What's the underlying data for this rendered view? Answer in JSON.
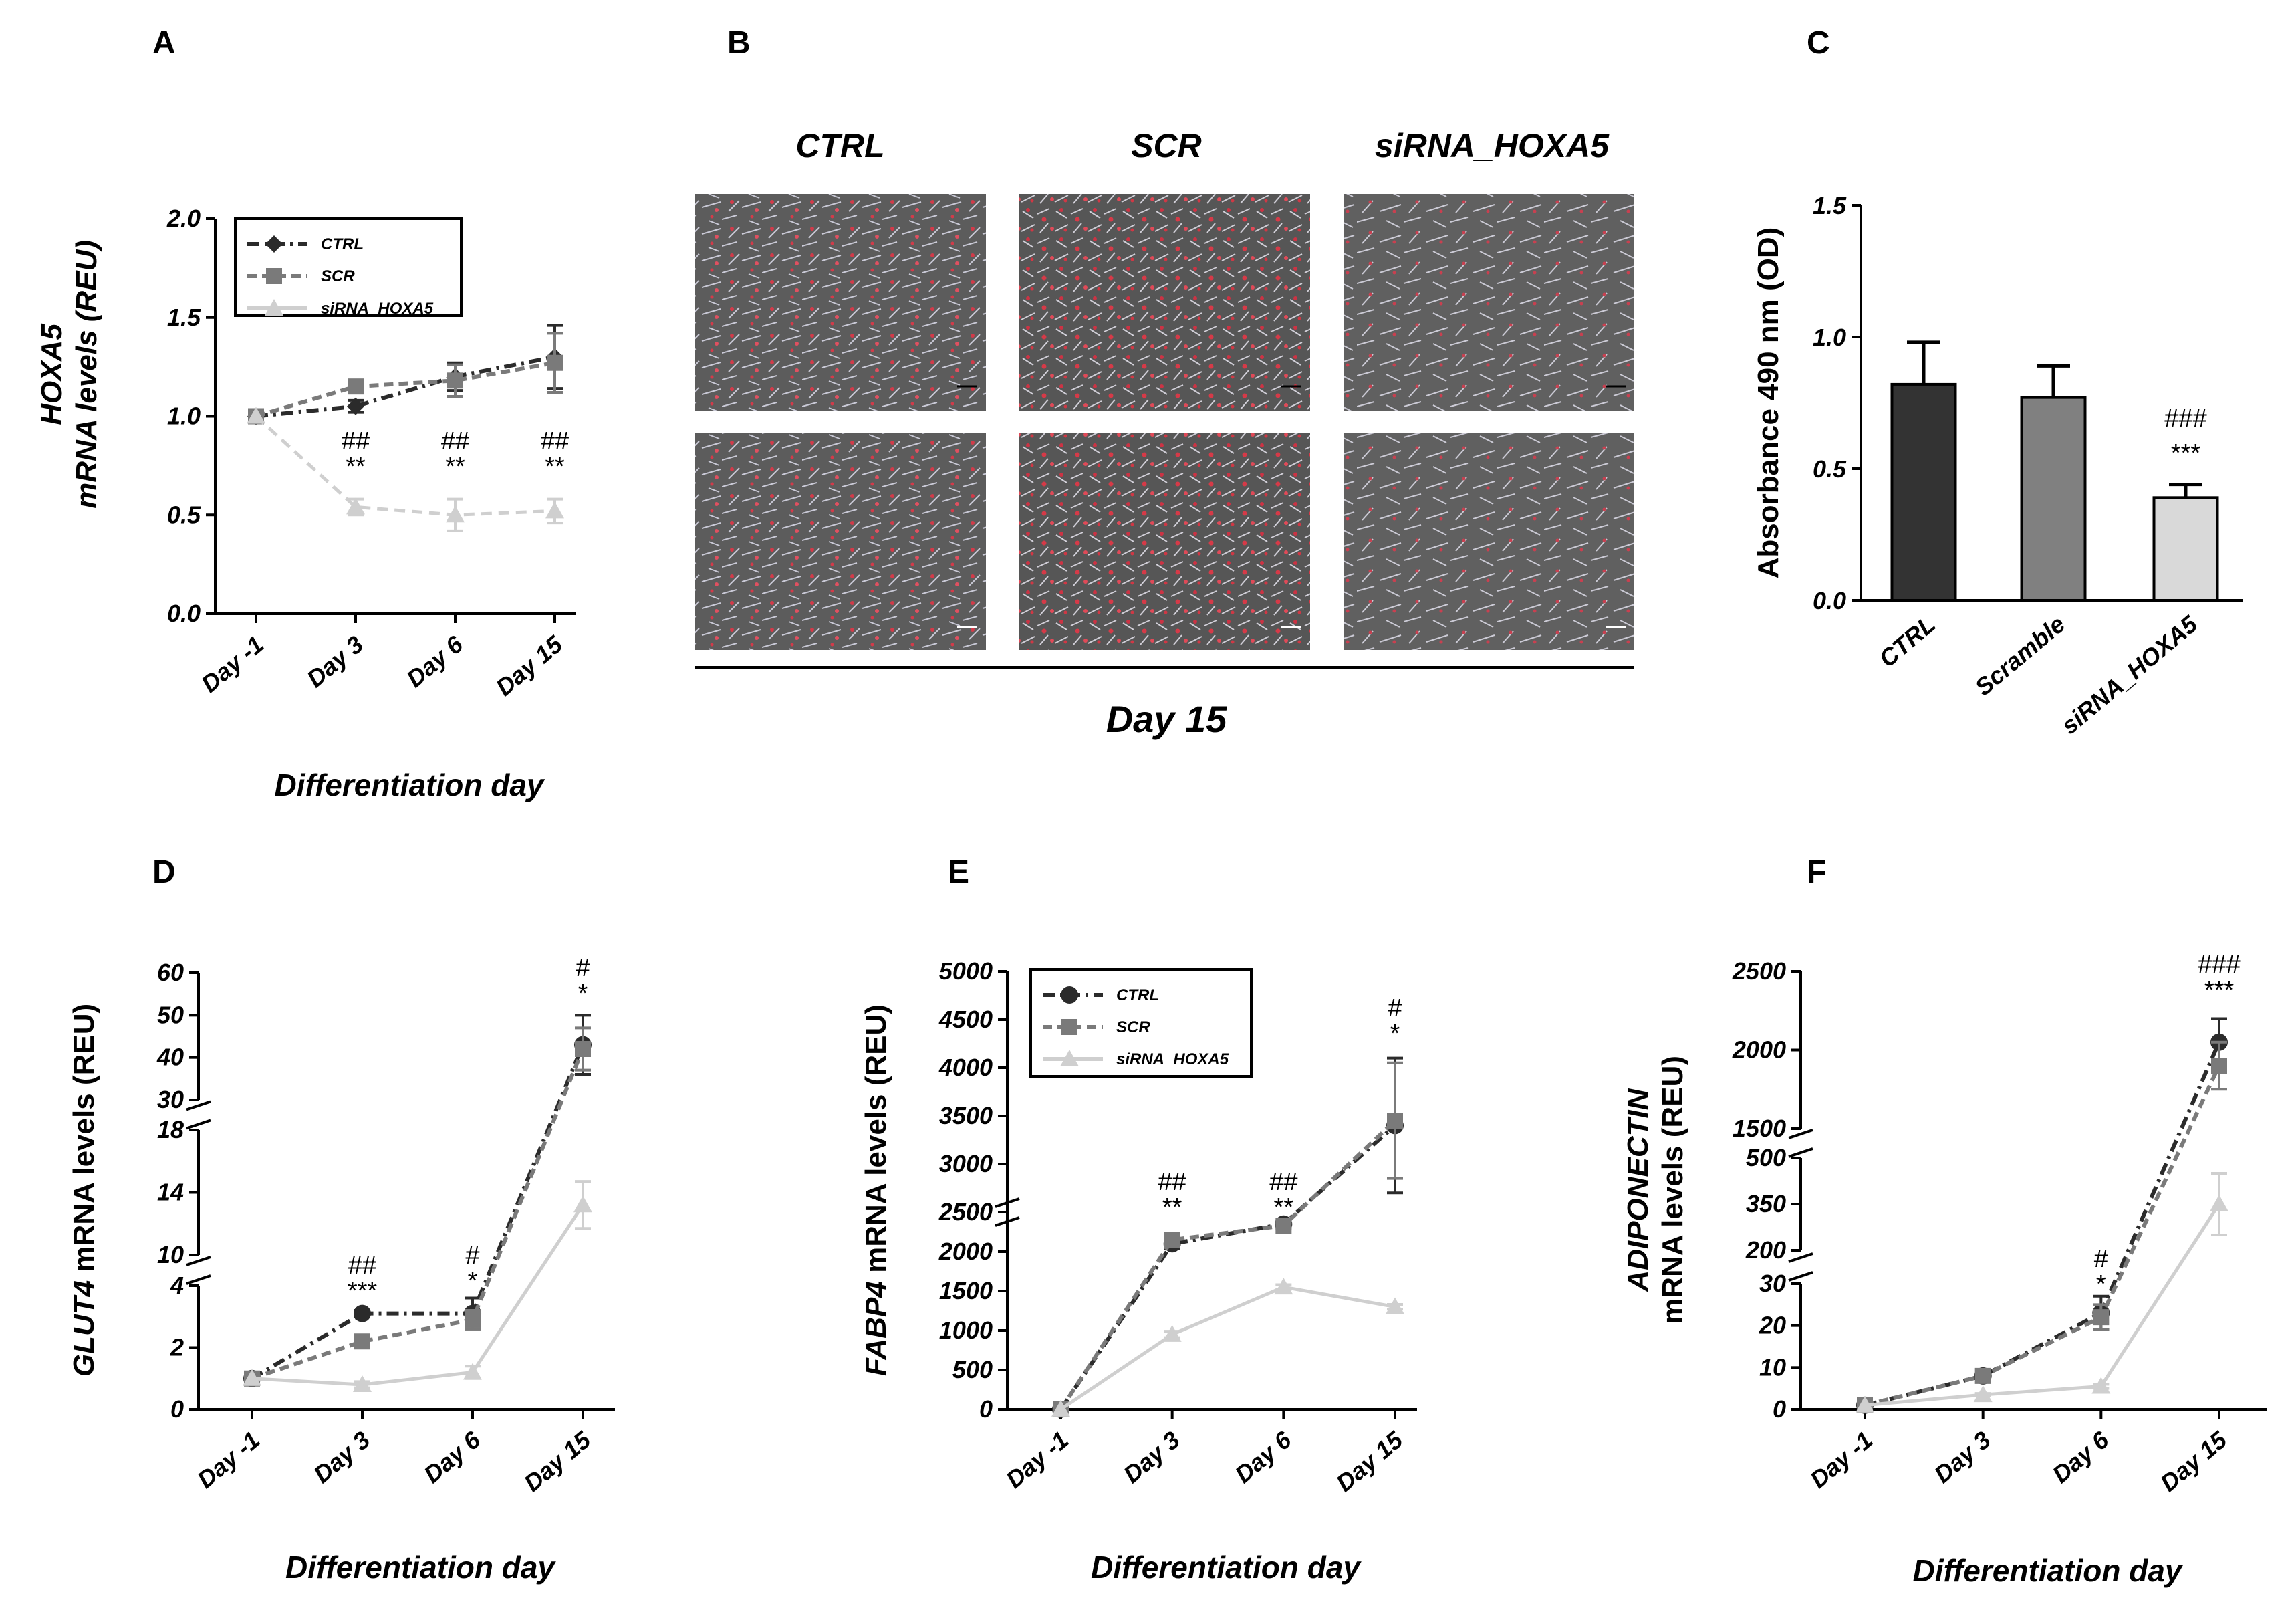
{
  "colors": {
    "ctrl": "#2b2b2b",
    "scr": "#7a7a7a",
    "sirna": "#cfcfcf",
    "bar_ctrl": "#333333",
    "bar_scr": "#808080",
    "bar_sirna": "#d9d9d9"
  },
  "panels": {
    "A": {
      "label": "A"
    },
    "B": {
      "label": "B"
    },
    "C": {
      "label": "C"
    },
    "D": {
      "label": "D"
    },
    "E": {
      "label": "E"
    },
    "F": {
      "label": "F"
    }
  },
  "chart_data": [
    {
      "id": "A",
      "type": "line",
      "ylabel_line1": "HOXA5",
      "ylabel_line2": "mRNA levels (REU)",
      "xlabel": "Differentiation day",
      "categories": [
        "Day -1",
        "Day 3",
        "Day 6",
        "Day 15"
      ],
      "ylim": [
        0,
        2.0
      ],
      "yticks": [
        "0.0",
        "0.5",
        "1.0",
        "1.5",
        "2.0"
      ],
      "legend": [
        "CTRL",
        "SCR",
        "siRNA_HOXA5"
      ],
      "series": [
        {
          "name": "CTRL",
          "values": [
            1.0,
            1.05,
            1.2,
            1.3
          ],
          "errors": [
            0,
            0.03,
            0.07,
            0.16
          ]
        },
        {
          "name": "SCR",
          "values": [
            1.0,
            1.15,
            1.18,
            1.27
          ],
          "errors": [
            0,
            0.03,
            0.08,
            0.15
          ]
        },
        {
          "name": "siRNA_HOXA5",
          "values": [
            1.0,
            0.54,
            0.5,
            0.52
          ],
          "errors": [
            0,
            0.04,
            0.08,
            0.06
          ]
        }
      ],
      "annotations": [
        {
          "x": "Day 3",
          "top": "##",
          "bottom": "**"
        },
        {
          "x": "Day 6",
          "top": "##",
          "bottom": "**"
        },
        {
          "x": "Day 15",
          "top": "##",
          "bottom": "**"
        }
      ]
    },
    {
      "id": "C",
      "type": "bar",
      "ylabel": "Absorbance 490 nm (OD)",
      "categories": [
        "CTRL",
        "Scramble",
        "siRNA_HOXA5"
      ],
      "values": [
        0.82,
        0.77,
        0.39
      ],
      "errors": [
        0.16,
        0.12,
        0.05
      ],
      "ylim": [
        0,
        1.5
      ],
      "yticks": [
        "0.0",
        "0.5",
        "1.0",
        "1.5"
      ],
      "annotations": [
        {
          "x": "siRNA_HOXA5",
          "top": "###",
          "bottom": "***"
        }
      ]
    },
    {
      "id": "D",
      "type": "line",
      "ylabel_gene": "GLUT4",
      "ylabel_rest": " mRNA levels (REU)",
      "xlabel": "Differentiation day",
      "categories": [
        "Day -1",
        "Day 3",
        "Day 6",
        "Day 15"
      ],
      "broken_axis_segments": [
        {
          "range": [
            0,
            4
          ],
          "ticks": [
            "0",
            "2",
            "4"
          ]
        },
        {
          "range": [
            10,
            18
          ],
          "ticks": [
            "10",
            "14",
            "18"
          ]
        },
        {
          "range": [
            30,
            60
          ],
          "ticks": [
            "30",
            "40",
            "50",
            "60"
          ]
        }
      ],
      "series": [
        {
          "name": "CTRL",
          "values": [
            1.0,
            3.1,
            3.1,
            43
          ],
          "errors": [
            0,
            0.1,
            0.5,
            7
          ]
        },
        {
          "name": "SCR",
          "values": [
            1.0,
            2.2,
            2.9,
            42
          ],
          "errors": [
            0,
            0.1,
            0.3,
            5
          ]
        },
        {
          "name": "siRNA_HOXA5",
          "values": [
            1.0,
            0.8,
            1.2,
            13.2
          ],
          "errors": [
            0,
            0.1,
            0.2,
            1.5
          ]
        }
      ],
      "annotations": [
        {
          "x": "Day 3",
          "top": "##",
          "bottom": "***"
        },
        {
          "x": "Day 6",
          "top": "#",
          "bottom": "*"
        },
        {
          "x": "Day 15",
          "top": "#",
          "bottom": "*"
        }
      ]
    },
    {
      "id": "E",
      "type": "line",
      "ylabel_gene": "FABP4",
      "ylabel_rest": " mRNA levels (REU)",
      "xlabel": "Differentiation day",
      "categories": [
        "Day -1",
        "Day 3",
        "Day 6",
        "Day 15"
      ],
      "legend": [
        "CTRL",
        "SCR",
        "siRNA_HOXA5"
      ],
      "broken_axis_segments": [
        {
          "range": [
            0,
            2500
          ],
          "ticks": [
            "0",
            "500",
            "1000",
            "1500",
            "2000",
            "2500"
          ]
        },
        {
          "range": [
            2500,
            5000
          ],
          "ticks": [
            "2500",
            "3000",
            "3500",
            "4000",
            "4500",
            "5000"
          ]
        }
      ],
      "series": [
        {
          "name": "CTRL",
          "values": [
            1,
            2100,
            2350,
            3400
          ],
          "errors": [
            0,
            60,
            40,
            700
          ]
        },
        {
          "name": "SCR",
          "values": [
            1,
            2150,
            2330,
            3450
          ],
          "errors": [
            0,
            60,
            40,
            600
          ]
        },
        {
          "name": "siRNA_HOXA5",
          "values": [
            1,
            950,
            1550,
            1300
          ],
          "errors": [
            0,
            40,
            30,
            30
          ]
        }
      ],
      "annotations": [
        {
          "x": "Day 3",
          "top": "##",
          "bottom": "**"
        },
        {
          "x": "Day 6",
          "top": "##",
          "bottom": "**"
        },
        {
          "x": "Day 15",
          "top": "#",
          "bottom": "*"
        }
      ]
    },
    {
      "id": "F",
      "type": "line",
      "ylabel_line1": "ADIPONECTIN",
      "ylabel_line2": "mRNA levels (REU)",
      "xlabel": "Differentiation day",
      "categories": [
        "Day -1",
        "Day 3",
        "Day 6",
        "Day 15"
      ],
      "broken_axis_segments": [
        {
          "range": [
            0,
            30
          ],
          "ticks": [
            "0",
            "10",
            "20",
            "30"
          ]
        },
        {
          "range": [
            200,
            500
          ],
          "ticks": [
            "200",
            "350",
            "500"
          ]
        },
        {
          "range": [
            1500,
            2500
          ],
          "ticks": [
            "1500",
            "2000",
            "2500"
          ]
        }
      ],
      "series": [
        {
          "name": "CTRL",
          "values": [
            1,
            8,
            23,
            2050
          ],
          "errors": [
            0,
            0.5,
            4,
            150
          ]
        },
        {
          "name": "SCR",
          "values": [
            1,
            8,
            22,
            1900
          ],
          "errors": [
            0,
            0.5,
            3,
            150
          ]
        },
        {
          "name": "siRNA_HOXA5",
          "values": [
            1,
            3.5,
            5.5,
            350
          ],
          "errors": [
            0,
            0.3,
            0.5,
            100
          ]
        }
      ],
      "annotations": [
        {
          "x": "Day 6",
          "top": "#",
          "bottom": "*"
        },
        {
          "x": "Day 15",
          "top": "###",
          "bottom": "***"
        }
      ]
    }
  ],
  "panel_B": {
    "columns": [
      "CTRL",
      "SCR",
      "siRNA_HOXA5"
    ],
    "caption": "Day 15"
  }
}
